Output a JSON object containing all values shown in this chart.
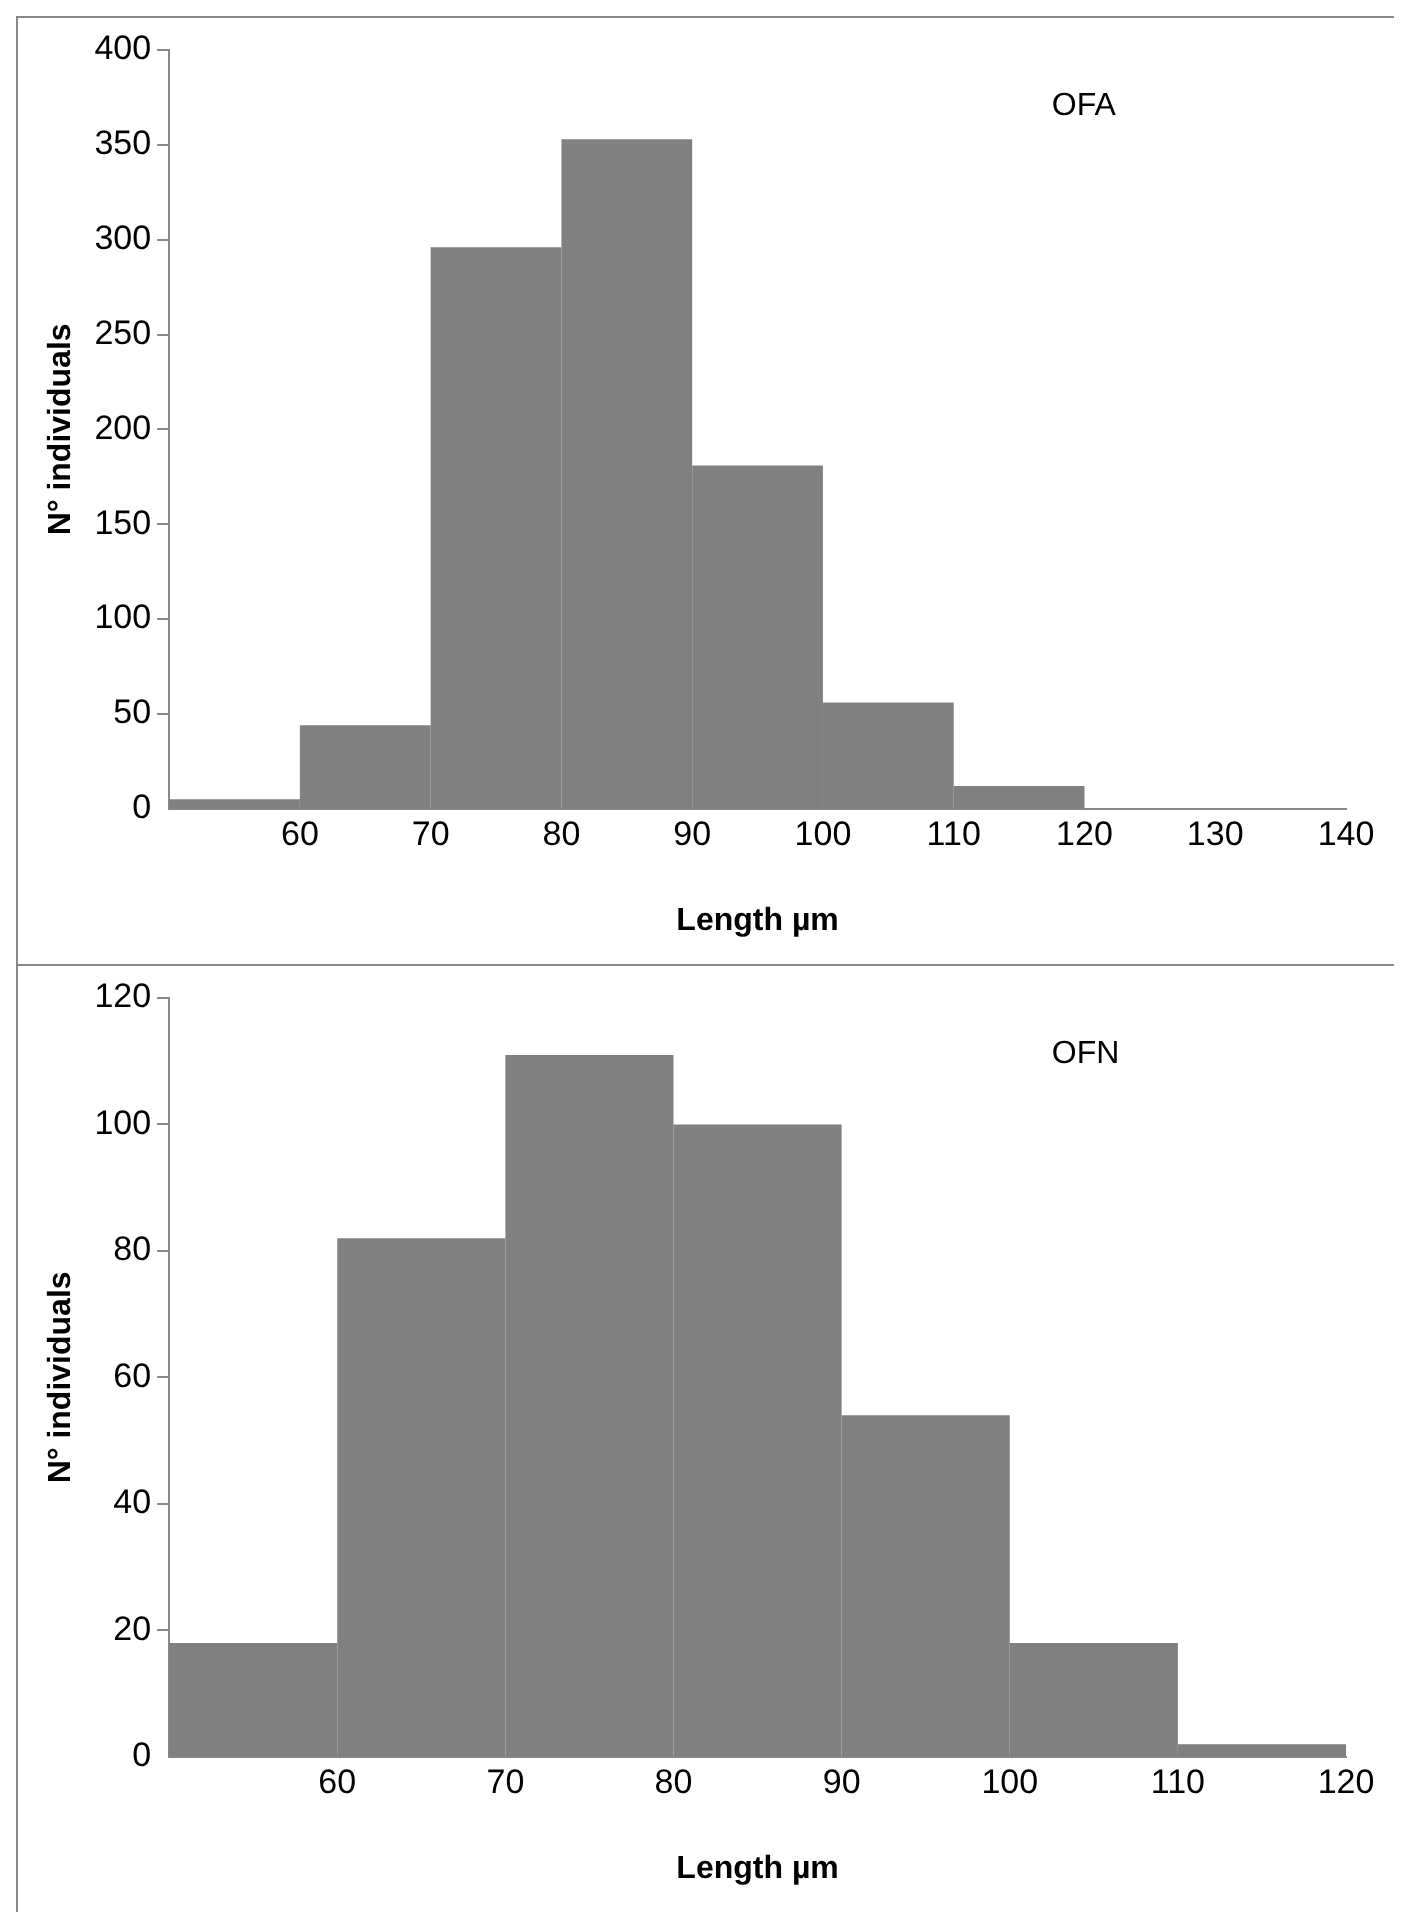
{
  "chart_data": [
    {
      "type": "histogram",
      "annotations": [
        "OFA"
      ],
      "xlabel": "Length µm",
      "ylabel": "N° individuals",
      "bins": [
        50,
        60,
        70,
        80,
        90,
        100,
        110,
        120,
        130,
        140
      ],
      "values": [
        5,
        44,
        296,
        353,
        181,
        56,
        12,
        0,
        0
      ],
      "color": "#808080",
      "xlim": [
        50,
        140
      ],
      "xticks": [
        60,
        70,
        80,
        90,
        100,
        110,
        120,
        130,
        140
      ],
      "ylim": [
        0,
        400
      ],
      "yticks": [
        0,
        50,
        100,
        150,
        200,
        250,
        300,
        350,
        400
      ],
      "grid": false,
      "legend": false
    },
    {
      "type": "histogram",
      "annotations": [
        "OFN"
      ],
      "xlabel": "Length µm",
      "ylabel": "N° individuals",
      "bins": [
        50,
        60,
        70,
        80,
        90,
        100,
        110,
        120
      ],
      "values": [
        18,
        82,
        111,
        100,
        54,
        18,
        2
      ],
      "color": "#808080",
      "xlim": [
        50,
        120
      ],
      "xticks": [
        60,
        70,
        80,
        90,
        100,
        110,
        120
      ],
      "ylim": [
        0,
        120
      ],
      "yticks": [
        0,
        20,
        40,
        60,
        80,
        100,
        120
      ],
      "grid": false,
      "legend": false
    }
  ]
}
